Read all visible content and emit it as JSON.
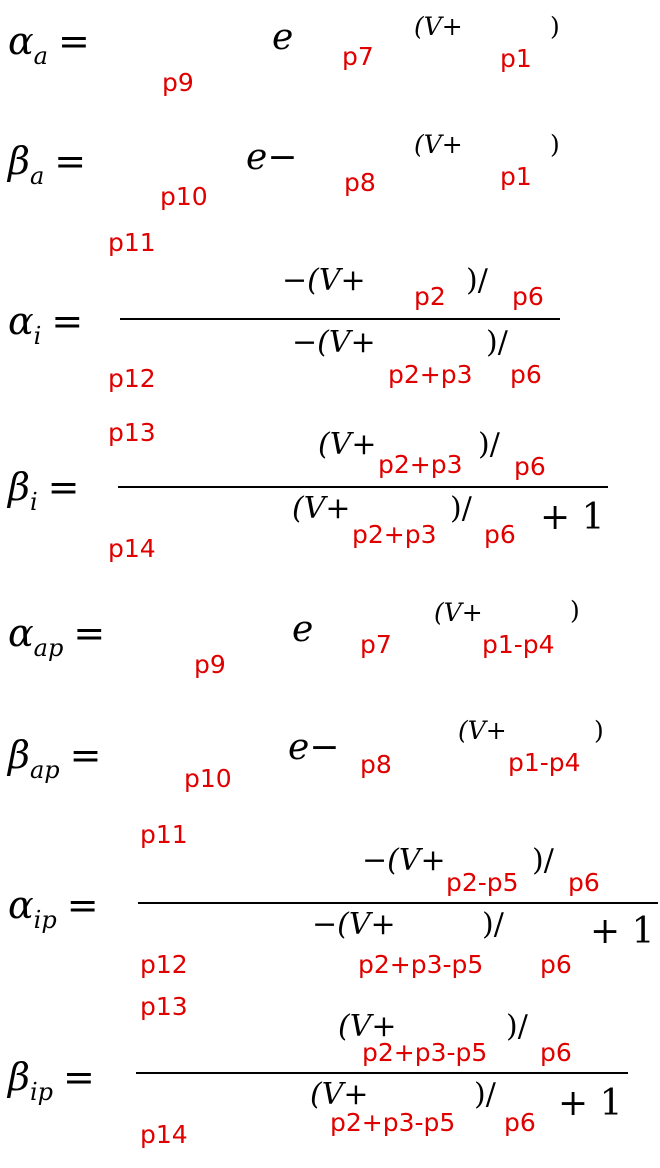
{
  "symbols": {
    "alpha": "α",
    "beta": "β",
    "equals": "=",
    "e": "e",
    "e_minus": "e−",
    "exp_v": "(V+",
    "exp_v_neg": "−(V+",
    "close_paren": ")",
    "close_div": ")/",
    "plus_one": "+ 1"
  },
  "subs": {
    "a": "a",
    "i": "i",
    "ap": "ap",
    "ip": "ip"
  },
  "params": {
    "p1": "p1",
    "p2": "p2",
    "p6": "p6",
    "p7": "p7",
    "p8": "p8",
    "p9": "p9",
    "p10": "p10",
    "p11": "p11",
    "p12": "p12",
    "p13": "p13",
    "p14": "p14",
    "p2p3": "p2+p3",
    "p1p4": "p1-p4",
    "p2p5": "p2-p5",
    "p2p3p5": "p2+p3-p5"
  }
}
